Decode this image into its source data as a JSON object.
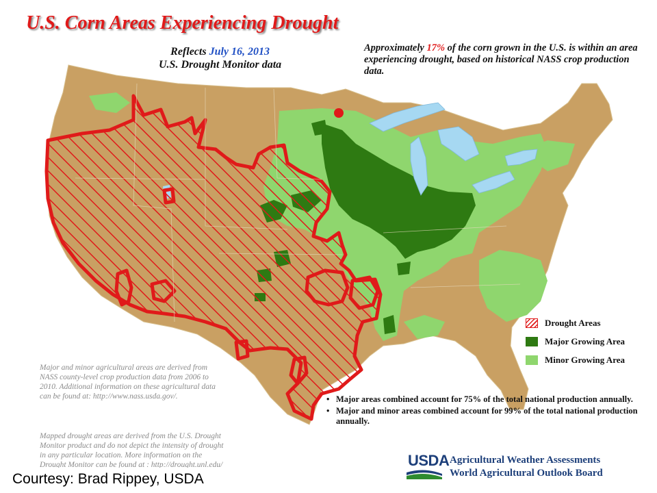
{
  "title": "U.S. Corn Areas Experiencing Drought",
  "reflects": {
    "prefix": "Reflects",
    "date": "July 16, 2013",
    "line2": "U.S. Drought Monitor data"
  },
  "summary": {
    "before": "Approximately",
    "percent": "17%",
    "after": "of the corn grown in the U.S. is within an area experiencing drought, based on historical NASS crop production data."
  },
  "legend": [
    {
      "key": "drought",
      "label": "Drought Areas"
    },
    {
      "key": "major",
      "label": "Major Growing Area"
    },
    {
      "key": "minor",
      "label": "Minor Growing Area"
    }
  ],
  "notes": {
    "source": "Major and minor agricultural areas are derived from NASS county-level crop production data from 2006 to 2010. Additional information on these agricultural data can be found at: http://www.nass.usda.gov/.",
    "drought": "Mapped drought areas are derived from the U.S. Drought Monitor product and do not depict the intensity of drought in any particular location. More information on the Drought Monitor can be found at : http://drought.unl.edu/"
  },
  "bullets": [
    "Major areas combined account for 75% of the total national production annually.",
    "Major and minor areas combined account for 99% of the total national production annually."
  ],
  "logo": {
    "usda": "USDA",
    "line1": "Agricultural Weather Assessments",
    "line2": "World Agricultural Outlook Board"
  },
  "courtesy": "Courtesy: Brad Rippey, USDA",
  "colors": {
    "land": "#c9a063",
    "major": "#2e7a12",
    "minor": "#8fd66e",
    "water": "#a6d8f2",
    "drought": "#e01a1a"
  }
}
